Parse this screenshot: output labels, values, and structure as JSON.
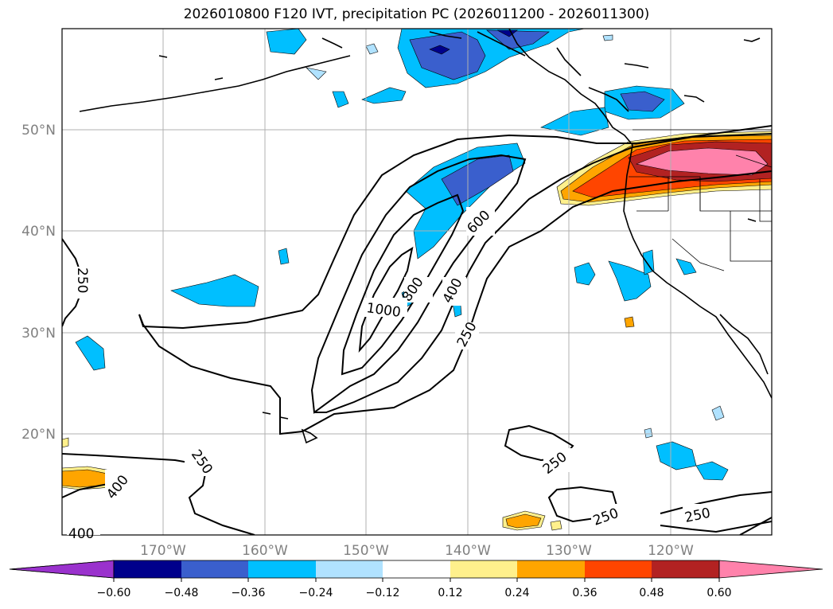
{
  "title": "2026010800 F120 IVT, precipitation PC (2026011200 - 2026011300)",
  "map": {
    "lon_labels": [
      "170°W",
      "160°W",
      "150°W",
      "140°W",
      "130°W",
      "120°W"
    ],
    "lat_labels": [
      "50°N",
      "40°N",
      "30°N",
      "20°N"
    ],
    "contour_labels": [
      "250",
      "250",
      "250",
      "250",
      "250",
      "250",
      "400",
      "400",
      "400",
      "600",
      "800",
      "1000"
    ]
  },
  "colorbar": {
    "labels": [
      "−0.60",
      "−0.48",
      "−0.36",
      "−0.24",
      "−0.12",
      "0.12",
      "0.24",
      "0.36",
      "0.48",
      "0.60"
    ],
    "colors": [
      "#9a32cd",
      "#00008b",
      "#3a5fcd",
      "#00bfff",
      "#b0e2ff",
      "#ffffff",
      "#fff08c",
      "#ffa500",
      "#ff4500",
      "#b22222",
      "#ff82ab"
    ]
  }
}
